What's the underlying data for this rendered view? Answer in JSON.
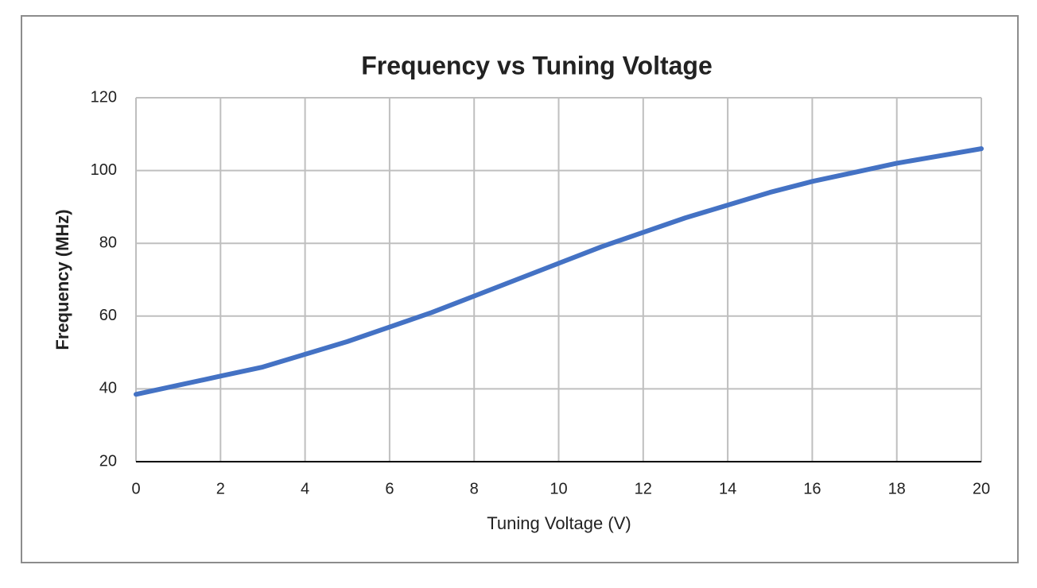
{
  "chart_data": {
    "type": "line",
    "title": "Frequency vs Tuning Voltage",
    "x_label": "Tuning Voltage (V)",
    "y_label": "Frequency (MHz)",
    "x": [
      0,
      1,
      2,
      3,
      4,
      5,
      6,
      7,
      8,
      9,
      10,
      11,
      12,
      13,
      14,
      15,
      16,
      17,
      18,
      19,
      20
    ],
    "series": [
      {
        "name": "Frequency",
        "color": "#4472c4",
        "values": [
          38.5,
          41,
          43.5,
          46,
          49.5,
          53,
          57,
          61,
          65.5,
          70,
          74.5,
          79,
          83,
          87,
          90.5,
          94,
          97,
          99.5,
          102,
          104,
          106
        ]
      }
    ],
    "xlim": [
      0,
      20
    ],
    "xticks": [
      0,
      2,
      4,
      6,
      8,
      10,
      12,
      14,
      16,
      18,
      20
    ],
    "ylim": [
      20,
      120
    ],
    "yticks": [
      20,
      40,
      60,
      80,
      100,
      120
    ],
    "grid": true
  }
}
